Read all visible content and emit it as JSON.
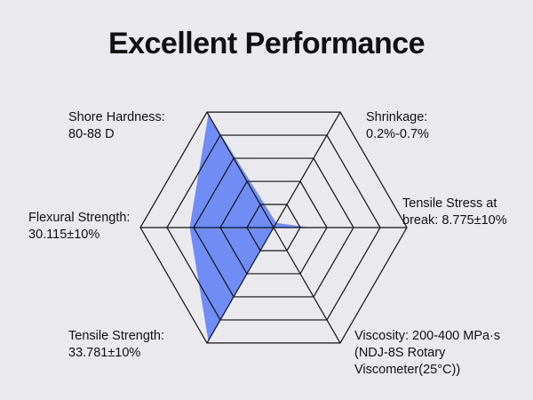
{
  "chart_data": {
    "type": "radar",
    "title": "Excellent Performance",
    "axes": [
      {
        "label": "Shrinkage:\n0.2%-0.7%",
        "value": 0.04
      },
      {
        "label": "Tensile Stress at\nbreak: 8.775±10%",
        "value": 0.28
      },
      {
        "label": "Viscosity: 200-400 MPa·s\n(NDJ-8S Rotary\nViscometer(25°C))",
        "value": 0.0
      },
      {
        "label": "Tensile Strength:\n33.781±10%",
        "value": 0.98
      },
      {
        "label": "Flexural Strength:\n30.115±10%",
        "value": 0.63
      },
      {
        "label": "Shore Hardness:\n80-88 D",
        "value": 0.98
      }
    ],
    "rings": 5,
    "fill_color": "#5b7cf7",
    "grid_color": "#111111",
    "background": "#e9e9ee"
  }
}
